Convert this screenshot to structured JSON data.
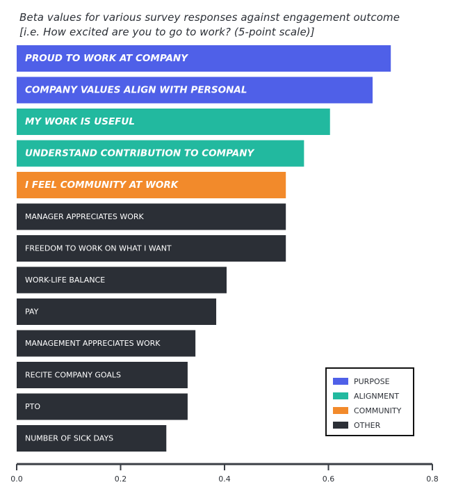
{
  "chart_data": {
    "type": "bar",
    "orientation": "horizontal",
    "title": "Beta values for various survey responses against engagement outcome",
    "subtitle": "[i.e. How excited are you to go to work? (5-point scale)]",
    "xlabel": "",
    "ylabel": "",
    "xlim": [
      0,
      0.8
    ],
    "xticks": [
      "0.0",
      "0.2",
      "0.4",
      "0.6",
      "0.8"
    ],
    "grid": false,
    "legend_position": "bottom-right",
    "categories": [
      "PROUD TO WORK AT COMPANY",
      "COMPANY VALUES ALIGN WITH PERSONAL",
      "MY WORK IS USEFUL",
      "UNDERSTAND CONTRIBUTION TO COMPANY",
      "I FEEL COMMUNITY AT WORK",
      "MANAGER APPRECIATES WORK",
      "FREEDOM TO WORK ON WHAT I WANT",
      "WORK-LIFE BALANCE",
      "PAY",
      "MANAGEMENT APPRECIATES WORK",
      "RECITE COMPANY GOALS",
      "PTO",
      "NUMBER OF SICK DAYS"
    ],
    "values": [
      0.72,
      0.685,
      0.603,
      0.553,
      0.518,
      0.518,
      0.518,
      0.404,
      0.384,
      0.344,
      0.329,
      0.329,
      0.288
    ],
    "groups": [
      "purpose",
      "purpose",
      "alignment",
      "alignment",
      "community",
      "other",
      "other",
      "other",
      "other",
      "other",
      "other",
      "other",
      "other"
    ],
    "legend": [
      {
        "key": "purpose",
        "label": "PURPOSE",
        "color": "#4f60e8"
      },
      {
        "key": "alignment",
        "label": "ALIGNMENT",
        "color": "#22b99f"
      },
      {
        "key": "community",
        "label": "COMMUNITY",
        "color": "#f28a2b"
      },
      {
        "key": "other",
        "label": "OTHER",
        "color": "#2b2f36"
      }
    ]
  }
}
